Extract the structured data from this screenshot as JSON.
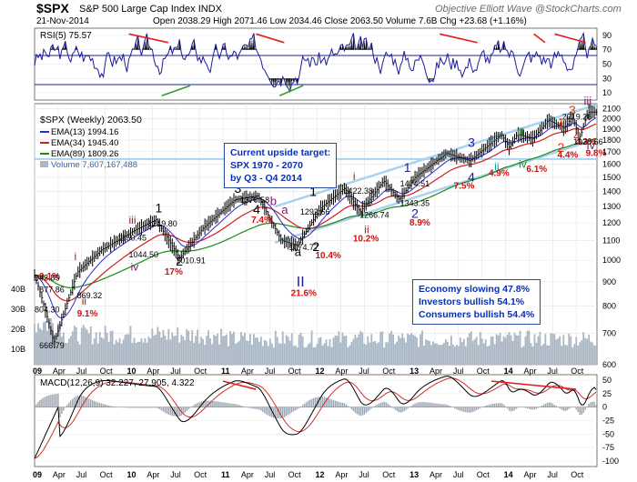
{
  "header": {
    "ticker": "$SPX",
    "description": "S&P 500 Large Cap Index",
    "exchange": "INDX",
    "brand": "Objective Elliott Wave",
    "brand_site": "@StockCharts.com",
    "date": "21-Nov-2014",
    "ohlc": "Open 2038.29   High 2071.46   Low 2034.46   Close 2063.50   Volume 7.6B   Chg +23.68 (+1.16%)"
  },
  "rsi_panel": {
    "label": "RSI(5) 75.57",
    "levels": [
      "90",
      "70",
      "50",
      "30",
      "10"
    ]
  },
  "legend": {
    "ticker_line": "$SPX (Weekly) 2063.50",
    "ema13": "EMA(13) 1994.16",
    "ema34": "EMA(34) 1945.40",
    "ema89": "EMA(89) 1809.26",
    "volume": "Volume 7,607,167,488"
  },
  "target_box": {
    "line1": "Current upside target:",
    "line2": "SPX 1970 - 2070",
    "line3": "by Q3 - Q4 2014"
  },
  "sentiment_box": {
    "line1": "Economy slowing 47.8%",
    "line2": "Investors bullish 54.1%",
    "line3": "Consumers bullish 54.4%"
  },
  "macd_panel": {
    "label": "MACD(12,26,9) 32.227, 27.905, 4.322",
    "levels": [
      "50",
      "25",
      "0",
      "-25",
      "-50",
      "-75",
      "-100"
    ]
  },
  "price_axis_labels": [
    "2100",
    "2000",
    "1900",
    "1800",
    "1700",
    "1600",
    "1500",
    "1400",
    "1300",
    "1200",
    "1100",
    "1000",
    "900",
    "800",
    "700",
    "600"
  ],
  "volume_axis_labels": [
    "40B",
    "30B",
    "20B",
    "10B"
  ],
  "time_axis_labels": [
    "09",
    "Apr",
    "Jul",
    "Oct",
    "10",
    "Apr",
    "Jul",
    "Oct",
    "11",
    "Apr",
    "Jul",
    "Oct",
    "12",
    "Apr",
    "Jul",
    "Oct",
    "13",
    "Apr",
    "Jul",
    "Oct",
    "14",
    "Apr",
    "Jul",
    "Oct"
  ],
  "colors": {
    "price_bars": "#000000",
    "ema13": "#2b2bcc",
    "ema34": "#cc1f1f",
    "ema89": "#1a8a1a",
    "volume": "#a9b6c4",
    "channel": "#a8d2ee",
    "trend_red": "#e02020",
    "trend_green": "#2aa02a",
    "wave_black": "#000000",
    "wave_navy": "#1c1c9a",
    "wave_purple": "#7a1e6e",
    "wave_darkred": "#9e1818",
    "wave_red": "#d63a12",
    "wave_green": "#1e8c1e",
    "wave_teal": "#129a9a",
    "pct_red": "#d01010"
  },
  "chart_data": {
    "type": "line",
    "title": "$SPX S&P 500 Large Cap Index INDX",
    "x": [
      "2009-03",
      "2009-06",
      "2009-09",
      "2010-01",
      "2010-04",
      "2010-07",
      "2010-10",
      "2011-02",
      "2011-05",
      "2011-08",
      "2011-10",
      "2012-01",
      "2012-04",
      "2012-06",
      "2012-09",
      "2012-11",
      "2013-01",
      "2013-05",
      "2013-08",
      "2013-12",
      "2014-01",
      "2014-02",
      "2014-04",
      "2014-06",
      "2014-08",
      "2014-09",
      "2014-10",
      "2014-11"
    ],
    "series": [
      {
        "name": "$SPX (Weekly)",
        "values": [
          666.79,
          943.85,
          1050,
          1150.45,
          1219.8,
          1010.91,
          1170,
          1344,
          1370.58,
          1101,
          1074.77,
          1292.66,
          1422.38,
          1266.74,
          1474.51,
          1343.35,
          1500,
          1687,
          1627,
          1850,
          1737,
          1850,
          1814,
          1985,
          1904,
          2019.26,
          1820.66,
          2063.5
        ]
      }
    ],
    "price_ylim": [
      600,
      2100
    ],
    "rsi": {
      "name": "RSI(5)",
      "last": 75.57,
      "ylim": [
        10,
        90
      ]
    },
    "macd": {
      "name": "MACD(12,26,9)",
      "macd": 32.227,
      "signal": 27.905,
      "histogram": 4.322,
      "ylim": [
        -100,
        50
      ]
    },
    "annotations": [
      {
        "text": "Economy slowing 47.8%"
      },
      {
        "text": "Investors bullish 54.1%"
      },
      {
        "text": "Consumers bullish 54.4%"
      }
    ],
    "price_labels": [
      "943.85",
      "877.86",
      "869.32",
      "804.30",
      "666.79",
      "1150.45",
      "1219.80",
      "1044.50",
      "1010.91",
      "1370.58",
      "1292.66",
      "1074.77",
      "1422.38",
      "1474.51",
      "1266.74",
      "1343.35",
      "2019.26",
      "1820.66"
    ],
    "wave_labels": [
      "i",
      "ii",
      "iii",
      "iv",
      "1",
      "2",
      "3",
      "4",
      "a",
      "b",
      "I",
      "II",
      "iii",
      "iv"
    ],
    "percent_labels": [
      "9.1%",
      "9.1%",
      "17%",
      "7.4%",
      "21.6%",
      "10.4%",
      "10.2%",
      "8.9%",
      "7.5%",
      "4.9%",
      "6.1%",
      "4.4%",
      "4.3%",
      "9.8%"
    ]
  }
}
